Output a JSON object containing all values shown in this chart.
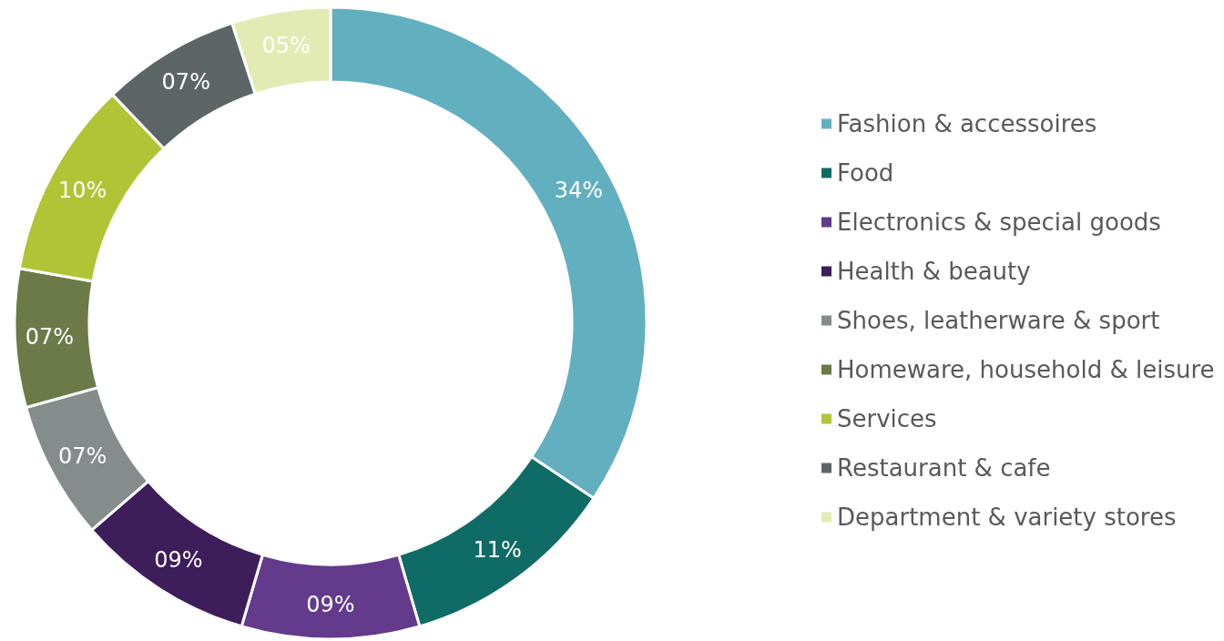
{
  "chart_data": {
    "type": "donut",
    "categories": [
      "Fashion & accessoires",
      "Food",
      "Electronics & special goods",
      "Health & beauty",
      "Shoes, leatherware & sport",
      "Homeware, household & leisure",
      "Services",
      "Restaurant & cafe",
      "Department & variety stores"
    ],
    "values": [
      34,
      11,
      9,
      9,
      7,
      7,
      10,
      7,
      5
    ],
    "value_labels": [
      "34%",
      "11%",
      "09%",
      "09%",
      "07%",
      "07%",
      "10%",
      "07%",
      "05%"
    ],
    "colors": [
      "#62afc0",
      "#0f6b66",
      "#633a8c",
      "#3d1d5a",
      "#868b8b",
      "#6b7a47",
      "#b0c436",
      "#5e6566",
      "#e3ebb4"
    ],
    "legend": "right"
  }
}
